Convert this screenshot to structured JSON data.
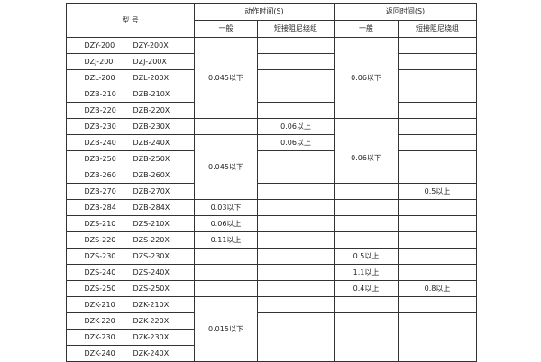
{
  "header": {
    "model": "型  号",
    "action_time": "动作时间(S)",
    "return_time": "返回时间(S)",
    "general": "一般",
    "short_winding": "短接阻尼绕组"
  },
  "rows": [
    {
      "model_a": "DZY-200",
      "model_b": "DZY-200X",
      "action_general": "0.045以下",
      "action_short": "",
      "return_general": "0.06以下",
      "return_short": ""
    },
    {
      "model_a": "DZJ-200",
      "model_b": "DZJ-200X",
      "action_short": "",
      "return_short": ""
    },
    {
      "model_a": "DZL-200",
      "model_b": "DZL-200X",
      "action_short": "",
      "return_short": ""
    },
    {
      "model_a": "DZB-210",
      "model_b": "DZB-210X",
      "action_short": "",
      "return_short": ""
    },
    {
      "model_a": "DZB-220",
      "model_b": "DZB-220X",
      "action_short": "",
      "return_short": ""
    },
    {
      "model_a": "DZB-230",
      "model_b": "DZB-230X",
      "action_general": "",
      "action_short": "0.06以上",
      "return_general": "0.06以下",
      "return_short": ""
    },
    {
      "model_a": "DZB-240",
      "model_b": "DZB-240X",
      "action_general": "0.045以下",
      "action_short": "0.06以上",
      "return_short": ""
    },
    {
      "model_a": "DZB-250",
      "model_b": "DZB-250X",
      "action_short": "",
      "return_short": ""
    },
    {
      "model_a": "DZB-260",
      "model_b": "DZB-260X",
      "action_short": "",
      "return_general": "",
      "return_short": ""
    },
    {
      "model_a": "DZB-270",
      "model_b": "DZB-270X",
      "action_short": "",
      "return_general": "",
      "return_short": "0.5以上"
    },
    {
      "model_a": "DZB-284",
      "model_b": "DZB-284X",
      "action_general": "0.03以下",
      "action_short": "",
      "return_general": "",
      "return_short": ""
    },
    {
      "model_a": "DZS-210",
      "model_b": "DZS-210X",
      "action_general": "0.06以上",
      "action_short": "",
      "return_general": "",
      "return_short": ""
    },
    {
      "model_a": "DZS-220",
      "model_b": "DZS-220X",
      "action_general": "0.11以上",
      "action_short": "",
      "return_general": "",
      "return_short": ""
    },
    {
      "model_a": "DZS-230",
      "model_b": "DZS-230X",
      "action_general": "",
      "action_short": "",
      "return_general": "0.5以上",
      "return_short": ""
    },
    {
      "model_a": "DZS-240",
      "model_b": "DZS-240X",
      "action_general": "",
      "action_short": "",
      "return_general": "1.1以上",
      "return_short": ""
    },
    {
      "model_a": "DZS-250",
      "model_b": "DZS-250X",
      "action_general": "",
      "action_short": "",
      "return_general": "0.4以上",
      "return_short": "0.8以上"
    },
    {
      "model_a": "DZK-210",
      "model_b": "DZK-210X",
      "action_general": "0.015以下",
      "action_short": "",
      "return_general": "",
      "return_short": ""
    },
    {
      "model_a": "DZK-220",
      "model_b": "DZK-220X",
      "action_short": "",
      "return_general": "",
      "return_short": ""
    },
    {
      "model_a": "DZK-230",
      "model_b": "DZK-230X"
    },
    {
      "model_a": "DZK-240",
      "model_b": "DZK-240X"
    }
  ]
}
